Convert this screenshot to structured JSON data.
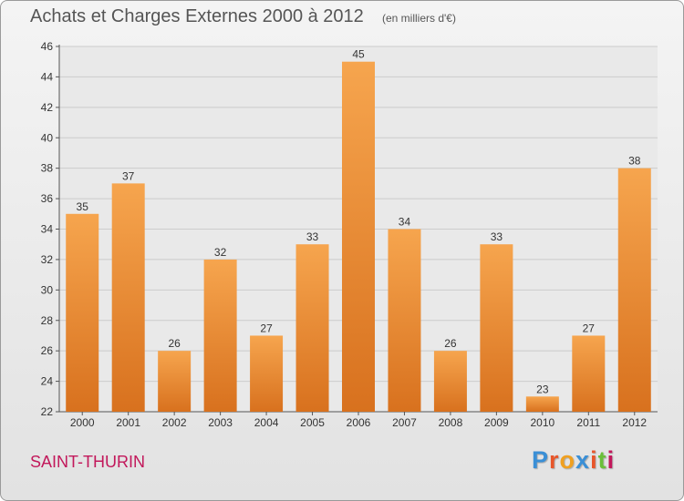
{
  "header": {
    "title": "Achats et Charges Externes 2000 à 2012",
    "unit": "(en milliers d'€)"
  },
  "footer": {
    "commune": "SAINT-THURIN",
    "logo_text": "Proxiti",
    "logo_colors": [
      "#3a8fd6",
      "#e8562a",
      "#f0a020",
      "#3a8fd6",
      "#e8562a",
      "#6abf3a",
      "#c2185b"
    ]
  },
  "colors": {
    "bar_light": "#f6a54e",
    "bar_dark": "#d8711e",
    "grid": "#cccccc",
    "axis": "#555555",
    "plot_bg": "#e9e9e9"
  },
  "chart_data": {
    "type": "bar",
    "title": "Achats et Charges Externes 2000 à 2012",
    "subtitle": "(en milliers d'€)",
    "xlabel": "",
    "ylabel": "",
    "categories": [
      "2000",
      "2001",
      "2002",
      "2003",
      "2004",
      "2005",
      "2006",
      "2007",
      "2008",
      "2009",
      "2010",
      "2011",
      "2012"
    ],
    "values": [
      35,
      37,
      26,
      32,
      27,
      33,
      45,
      34,
      26,
      33,
      23,
      27,
      38
    ],
    "ylim": [
      22,
      46
    ],
    "yticks": [
      22,
      24,
      26,
      28,
      30,
      32,
      34,
      36,
      38,
      40,
      42,
      44,
      46
    ],
    "grid": true,
    "data_labels": true
  }
}
